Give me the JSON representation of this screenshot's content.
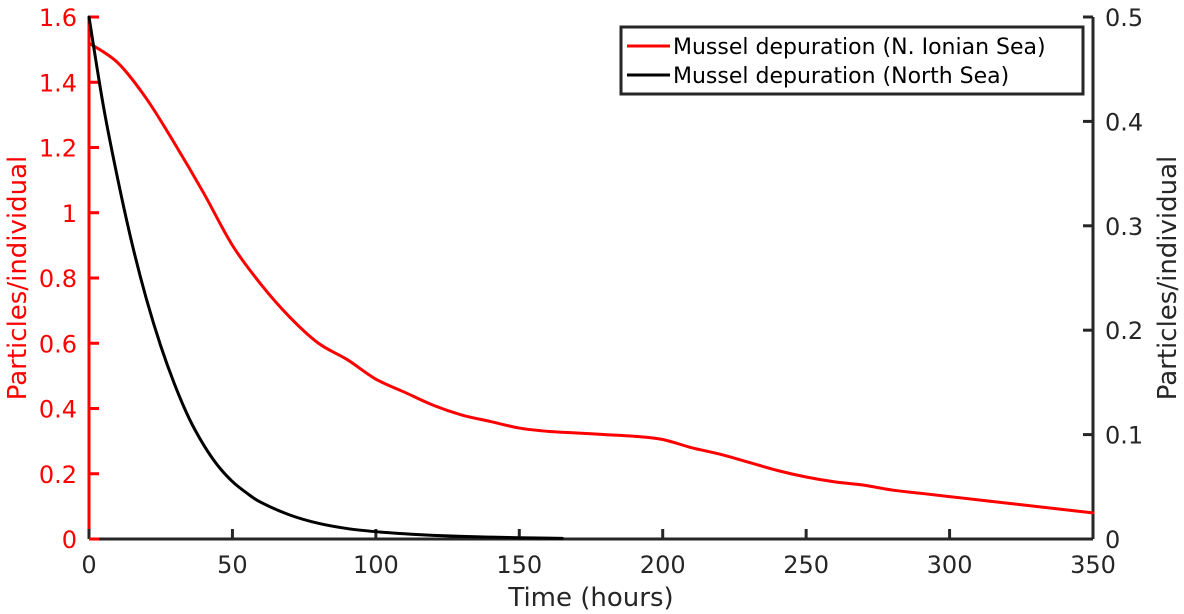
{
  "chart_data": {
    "type": "line",
    "xlabel": "Time (hours)",
    "ylabel_left": "Particles/individual",
    "ylabel_right": "Particles/individual",
    "xlim": [
      0,
      350
    ],
    "ylim_left": [
      0,
      1.6
    ],
    "ylim_right": [
      0,
      0.5
    ],
    "x_ticks": [
      "0",
      "50",
      "100",
      "150",
      "200",
      "250",
      "300",
      "350"
    ],
    "y_left_ticks": [
      "0",
      "0.2",
      "0.4",
      "0.6",
      "0.8",
      "1",
      "1.2",
      "1.4",
      "1.6"
    ],
    "y_right_ticks": [
      "0",
      "0.1",
      "0.2",
      "0.3",
      "0.4",
      "0.5"
    ],
    "grid": false,
    "legend_position": "top-right",
    "colors": {
      "left_axis": "#ff0000",
      "right_axis": "#262626"
    },
    "series": [
      {
        "name": "Mussel depuration (N. Ionian Sea)",
        "color": "#ff0000",
        "axis": "left",
        "x": [
          0,
          10,
          20,
          30,
          40,
          50,
          60,
          70,
          80,
          90,
          100,
          110,
          120,
          130,
          140,
          150,
          160,
          170,
          180,
          190,
          200,
          210,
          220,
          230,
          240,
          250,
          260,
          270,
          280,
          290,
          300,
          310,
          320,
          330,
          340,
          350
        ],
        "y": [
          1.52,
          1.46,
          1.35,
          1.21,
          1.06,
          0.9,
          0.78,
          0.68,
          0.6,
          0.55,
          0.49,
          0.45,
          0.41,
          0.38,
          0.36,
          0.34,
          0.33,
          0.325,
          0.32,
          0.315,
          0.305,
          0.28,
          0.26,
          0.235,
          0.21,
          0.19,
          0.175,
          0.165,
          0.15,
          0.14,
          0.13,
          0.12,
          0.11,
          0.1,
          0.09,
          0.08
        ]
      },
      {
        "name": "Mussel depuration (North Sea)",
        "color": "#000000",
        "axis": "right",
        "x": [
          0,
          5,
          10,
          15,
          20,
          25,
          30,
          35,
          40,
          45,
          50,
          55,
          60,
          70,
          80,
          90,
          100,
          110,
          120,
          130,
          140,
          150,
          160,
          165
        ],
        "y": [
          0.5,
          0.415,
          0.345,
          0.283,
          0.23,
          0.185,
          0.147,
          0.115,
          0.09,
          0.07,
          0.055,
          0.044,
          0.035,
          0.023,
          0.015,
          0.01,
          0.007,
          0.005,
          0.0035,
          0.0025,
          0.0018,
          0.0012,
          0.0008,
          0.0006
        ]
      }
    ]
  }
}
